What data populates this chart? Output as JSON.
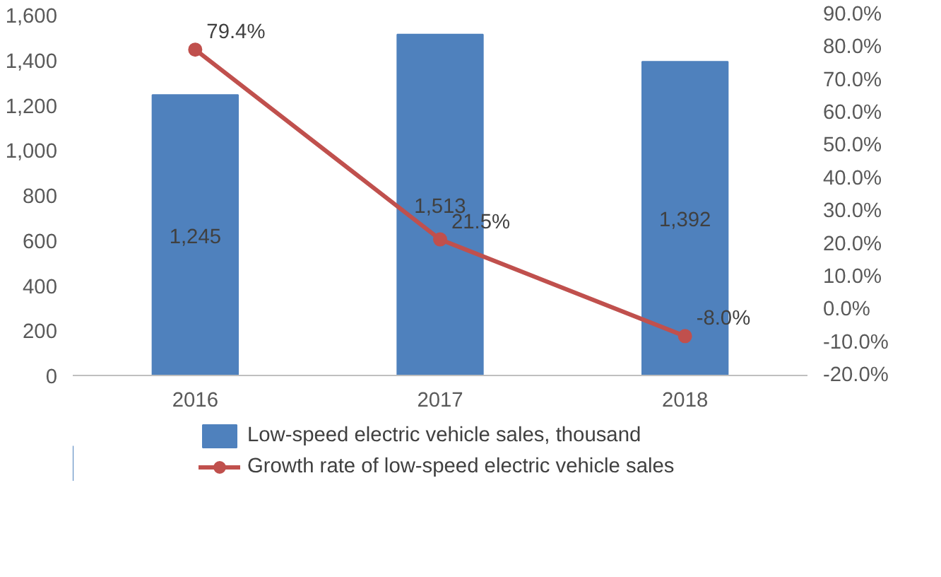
{
  "chart_data": {
    "type": "bar",
    "categories": [
      "2016",
      "2017",
      "2018"
    ],
    "series": [
      {
        "name": "Low-speed electric vehicle sales, thousand",
        "color": "#4f81bd",
        "values": [
          1245,
          1513,
          1392
        ],
        "value_labels": [
          "1,245",
          "1,513",
          "1,392"
        ]
      },
      {
        "name": "Growth rate of low-speed electric vehicle sales",
        "type": "line",
        "axis": "y2",
        "color": "#c0504d",
        "values": [
          79.4,
          21.5,
          -8.0
        ],
        "value_labels": [
          "79.4%",
          "21.5%",
          "-8.0%"
        ],
        "marker": "circle"
      }
    ],
    "ylim": [
      0,
      1600
    ],
    "yticks": [
      {
        "value": 0,
        "label": "0"
      },
      {
        "value": 200,
        "label": "200"
      },
      {
        "value": 400,
        "label": "400"
      },
      {
        "value": 600,
        "label": "600"
      },
      {
        "value": 800,
        "label": "800"
      },
      {
        "value": 1000,
        "label": "1,000"
      },
      {
        "value": 1200,
        "label": "1,200"
      },
      {
        "value": 1400,
        "label": "1,400"
      },
      {
        "value": 1600,
        "label": "1,600"
      }
    ],
    "y2lim": [
      -20,
      90
    ],
    "y2ticks": [
      {
        "value": -20,
        "label": "-20.0%"
      },
      {
        "value": -10,
        "label": "-10.0%"
      },
      {
        "value": 0,
        "label": "0.0%"
      },
      {
        "value": 10,
        "label": "10.0%"
      },
      {
        "value": 20,
        "label": "20.0%"
      },
      {
        "value": 30,
        "label": "30.0%"
      },
      {
        "value": 40,
        "label": "40.0%"
      },
      {
        "value": 50,
        "label": "50.0%"
      },
      {
        "value": 60,
        "label": "60.0%"
      },
      {
        "value": 70,
        "label": "70.0%"
      },
      {
        "value": 80,
        "label": "80.0%"
      },
      {
        "value": 90,
        "label": "90.0%"
      }
    ],
    "grid": false,
    "legend": "bottom"
  }
}
